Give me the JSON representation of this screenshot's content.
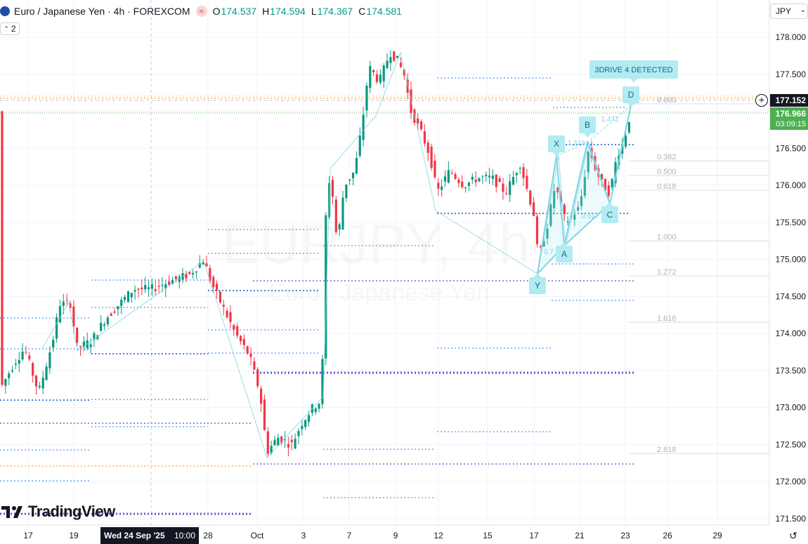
{
  "header": {
    "symbol_title": "Euro / Japanese Yen · 4h · FOREXCOM",
    "session_icon": "session-indicator-icon",
    "ohlc": [
      {
        "label": "O",
        "value": "174.537"
      },
      {
        "label": "H",
        "value": "174.594"
      },
      {
        "label": "L",
        "value": "174.367"
      },
      {
        "label": "C",
        "value": "174.581"
      }
    ],
    "indicator_count": "2",
    "currency": "JPY"
  },
  "watermark": {
    "symbol": "EURJPY, 4h",
    "name": "Euro / Japanese Yen"
  },
  "logo_text": "TradingView",
  "price_axis": {
    "ticks": [
      "178.000",
      "177.500",
      "177.000",
      "176.500",
      "176.000",
      "175.500",
      "175.000",
      "174.500",
      "174.000",
      "173.500",
      "173.000",
      "172.500",
      "172.000",
      "171.500"
    ],
    "crosshair_price": "177.152",
    "last_price": "176.966",
    "countdown": "03:09:15"
  },
  "time_axis": {
    "ticks": [
      "17",
      "19",
      "28",
      "Oct",
      "3",
      "7",
      "9",
      "12",
      "15",
      "17",
      "21",
      "23",
      "26",
      "29"
    ],
    "crosshair_label": "Wed 24 Sep '25",
    "crosshair_time": "10:00"
  },
  "pattern": {
    "banner": "3DRIVE 4 DETECTED",
    "points": [
      "X",
      "A",
      "B",
      "C",
      "D",
      "Y"
    ],
    "ratios": [
      "1.472",
      "1.318",
      "0.617",
      "0.7"
    ],
    "fib_levels": [
      "0.000",
      "0.382",
      "0.500",
      "0.618",
      "1.000",
      "1.272",
      "1.618",
      "2.618"
    ]
  },
  "colors": {
    "up": "#089981",
    "down": "#f23645",
    "pattern": "#b2ebf2",
    "pattern_text": "#0b6e8a",
    "level_blue": "#90bff9",
    "level_purple": "#9c8fd1",
    "level_orange": "#f5c891",
    "last_price_bg": "#4caf50"
  },
  "icons": {
    "crosshair_plus": "plus-circle-icon",
    "reset": "reset-chart-icon",
    "chevron": "chevron-down-icon"
  }
}
